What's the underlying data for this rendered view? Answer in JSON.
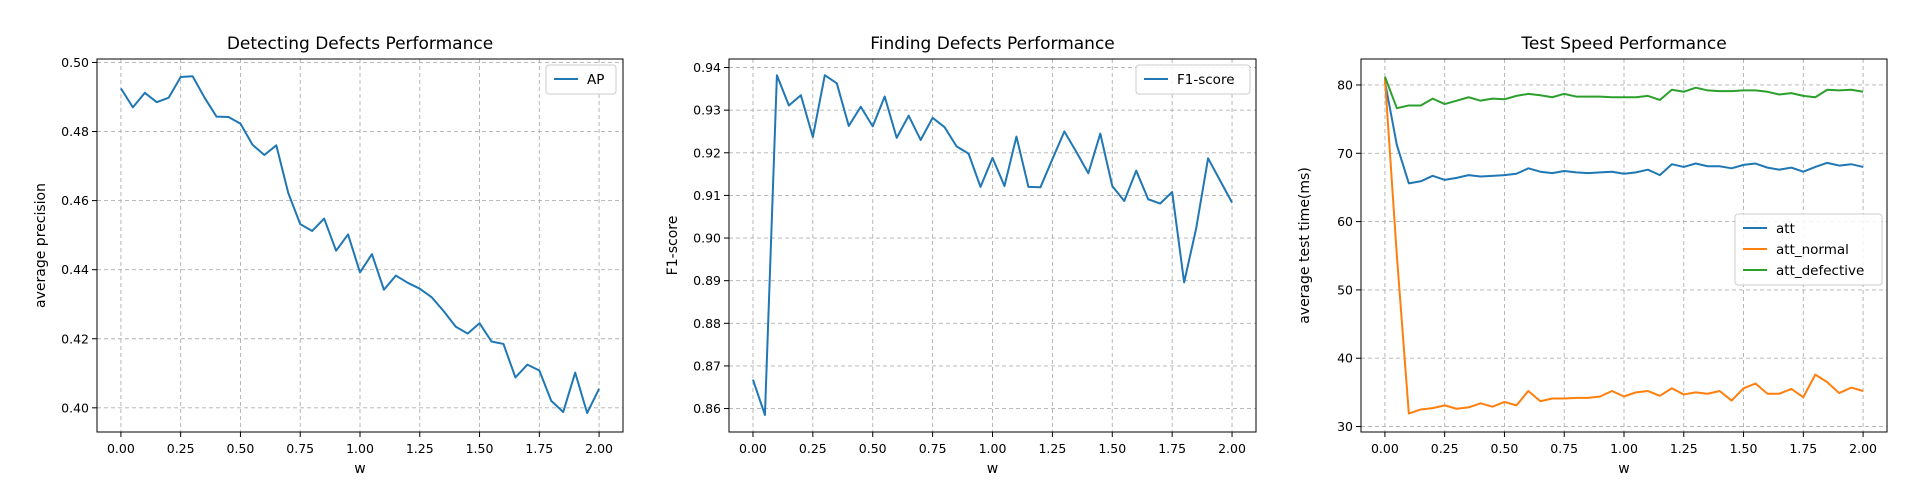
{
  "chart_data": [
    {
      "type": "line",
      "title": "Detecting Defects Performance",
      "xlabel": "w",
      "ylabel": "average precision",
      "xlim": [
        -0.1,
        2.1
      ],
      "ylim": [
        0.393,
        0.501
      ],
      "xticks": [
        0.0,
        0.25,
        0.5,
        0.75,
        1.0,
        1.25,
        1.5,
        1.75,
        2.0
      ],
      "xtick_labels": [
        "0.00",
        "0.25",
        "0.50",
        "0.75",
        "1.00",
        "1.25",
        "1.50",
        "1.75",
        "2.00"
      ],
      "yticks": [
        0.4,
        0.42,
        0.44,
        0.46,
        0.48,
        0.5
      ],
      "ytick_labels": [
        "0.40",
        "0.42",
        "0.44",
        "0.46",
        "0.48",
        "0.50"
      ],
      "grid": true,
      "legend_position": "top-right",
      "x": [
        0.0,
        0.05,
        0.1,
        0.15,
        0.2,
        0.25,
        0.3,
        0.35,
        0.4,
        0.45,
        0.5,
        0.55,
        0.6,
        0.65,
        0.7,
        0.75,
        0.8,
        0.85,
        0.9,
        0.95,
        1.0,
        1.05,
        1.1,
        1.15,
        1.2,
        1.25,
        1.3,
        1.35,
        1.4,
        1.45,
        1.5,
        1.55,
        1.6,
        1.65,
        1.7,
        1.75,
        1.8,
        1.85,
        1.9,
        1.95,
        2.0
      ],
      "series": [
        {
          "name": "AP",
          "color": "#1f77b4",
          "values": [
            0.4925,
            0.487,
            0.4912,
            0.4885,
            0.4898,
            0.4958,
            0.496,
            0.4898,
            0.4843,
            0.4842,
            0.4823,
            0.4762,
            0.4732,
            0.476,
            0.4622,
            0.4532,
            0.4512,
            0.4548,
            0.4455,
            0.4502,
            0.4392,
            0.4445,
            0.4342,
            0.4383,
            0.4362,
            0.4345,
            0.432,
            0.428,
            0.4235,
            0.4215,
            0.4245,
            0.4192,
            0.4185,
            0.4088,
            0.4125,
            0.4108,
            0.402,
            0.3988,
            0.4102,
            0.3985,
            0.4055
          ]
        }
      ]
    },
    {
      "type": "line",
      "title": "Finding Defects Performance",
      "xlabel": "w",
      "ylabel": "F1-score",
      "xlim": [
        -0.1,
        2.1
      ],
      "ylim": [
        0.8545,
        0.942
      ],
      "xticks": [
        0.0,
        0.25,
        0.5,
        0.75,
        1.0,
        1.25,
        1.5,
        1.75,
        2.0
      ],
      "xtick_labels": [
        "0.00",
        "0.25",
        "0.50",
        "0.75",
        "1.00",
        "1.25",
        "1.50",
        "1.75",
        "2.00"
      ],
      "yticks": [
        0.86,
        0.87,
        0.88,
        0.89,
        0.9,
        0.91,
        0.92,
        0.93,
        0.94
      ],
      "ytick_labels": [
        "0.86",
        "0.87",
        "0.88",
        "0.89",
        "0.90",
        "0.91",
        "0.92",
        "0.93",
        "0.94"
      ],
      "grid": true,
      "legend_position": "top-right",
      "x": [
        0.0,
        0.05,
        0.1,
        0.15,
        0.2,
        0.25,
        0.3,
        0.35,
        0.4,
        0.45,
        0.5,
        0.55,
        0.6,
        0.65,
        0.7,
        0.75,
        0.8,
        0.85,
        0.9,
        0.95,
        1.0,
        1.05,
        1.1,
        1.15,
        1.2,
        1.25,
        1.3,
        1.35,
        1.4,
        1.45,
        1.5,
        1.55,
        1.6,
        1.65,
        1.7,
        1.75,
        1.8,
        1.85,
        1.9,
        1.95,
        2.0
      ],
      "series": [
        {
          "name": "F1-score",
          "color": "#1f77b4",
          "values": [
            0.8668,
            0.8585,
            0.9382,
            0.9311,
            0.9335,
            0.9237,
            0.9382,
            0.9363,
            0.9263,
            0.9308,
            0.9262,
            0.9332,
            0.9235,
            0.9287,
            0.923,
            0.9282,
            0.926,
            0.9215,
            0.9198,
            0.912,
            0.9188,
            0.9122,
            0.9238,
            0.912,
            0.9119,
            0.9185,
            0.925,
            0.9202,
            0.9152,
            0.9245,
            0.9122,
            0.9087,
            0.9158,
            0.9091,
            0.9081,
            0.9108,
            0.8896,
            0.9022,
            0.9187,
            0.9135,
            0.9083
          ]
        }
      ]
    },
    {
      "type": "line",
      "title": "Test Speed Performance",
      "xlabel": "w",
      "ylabel": "average test time(ms)",
      "xlim": [
        -0.1,
        2.1
      ],
      "ylim": [
        29.2,
        83.8
      ],
      "xticks": [
        0.0,
        0.25,
        0.5,
        0.75,
        1.0,
        1.25,
        1.5,
        1.75,
        2.0
      ],
      "xtick_labels": [
        "0.00",
        "0.25",
        "0.50",
        "0.75",
        "1.00",
        "1.25",
        "1.50",
        "1.75",
        "2.00"
      ],
      "yticks": [
        30,
        40,
        50,
        60,
        70,
        80
      ],
      "ytick_labels": [
        "30",
        "40",
        "50",
        "60",
        "70",
        "80"
      ],
      "grid": true,
      "legend_position": "center-right",
      "x": [
        0.0,
        0.05,
        0.1,
        0.15,
        0.2,
        0.25,
        0.3,
        0.35,
        0.4,
        0.45,
        0.5,
        0.55,
        0.6,
        0.65,
        0.7,
        0.75,
        0.8,
        0.85,
        0.9,
        0.95,
        1.0,
        1.05,
        1.1,
        1.15,
        1.2,
        1.25,
        1.3,
        1.35,
        1.4,
        1.45,
        1.5,
        1.55,
        1.6,
        1.65,
        1.7,
        1.75,
        1.8,
        1.85,
        1.9,
        1.95,
        2.0
      ],
      "series": [
        {
          "name": "att",
          "color": "#1f77b4",
          "values": [
            80.5,
            71.2,
            65.6,
            65.9,
            66.7,
            66.1,
            66.4,
            66.8,
            66.6,
            66.7,
            66.8,
            67.0,
            67.8,
            67.3,
            67.1,
            67.4,
            67.2,
            67.1,
            67.2,
            67.3,
            67.0,
            67.2,
            67.6,
            66.8,
            68.4,
            68.0,
            68.5,
            68.1,
            68.1,
            67.8,
            68.3,
            68.5,
            67.9,
            67.6,
            67.9,
            67.3,
            68.0,
            68.6,
            68.2,
            68.4,
            68.0
          ]
        },
        {
          "name": "att_normal",
          "color": "#ff7f0e",
          "values": [
            81.0,
            55.0,
            31.9,
            32.5,
            32.7,
            33.1,
            32.6,
            32.8,
            33.4,
            32.9,
            33.6,
            33.1,
            35.2,
            33.7,
            34.1,
            34.1,
            34.2,
            34.2,
            34.4,
            35.2,
            34.4,
            35.0,
            35.2,
            34.5,
            35.6,
            34.7,
            35.0,
            34.8,
            35.2,
            33.8,
            35.6,
            36.3,
            34.8,
            34.8,
            35.5,
            34.3,
            37.6,
            36.5,
            34.9,
            35.7,
            35.2
          ]
        },
        {
          "name": "att_defective",
          "color": "#2ca02c",
          "values": [
            81.2,
            76.6,
            77.0,
            77.0,
            78.0,
            77.2,
            77.7,
            78.2,
            77.7,
            78.0,
            77.9,
            78.4,
            78.7,
            78.5,
            78.2,
            78.7,
            78.3,
            78.3,
            78.3,
            78.2,
            78.2,
            78.2,
            78.4,
            77.8,
            79.3,
            79.0,
            79.6,
            79.2,
            79.1,
            79.1,
            79.2,
            79.2,
            79.0,
            78.6,
            78.8,
            78.4,
            78.2,
            79.3,
            79.2,
            79.3,
            79.0
          ]
        }
      ]
    }
  ]
}
